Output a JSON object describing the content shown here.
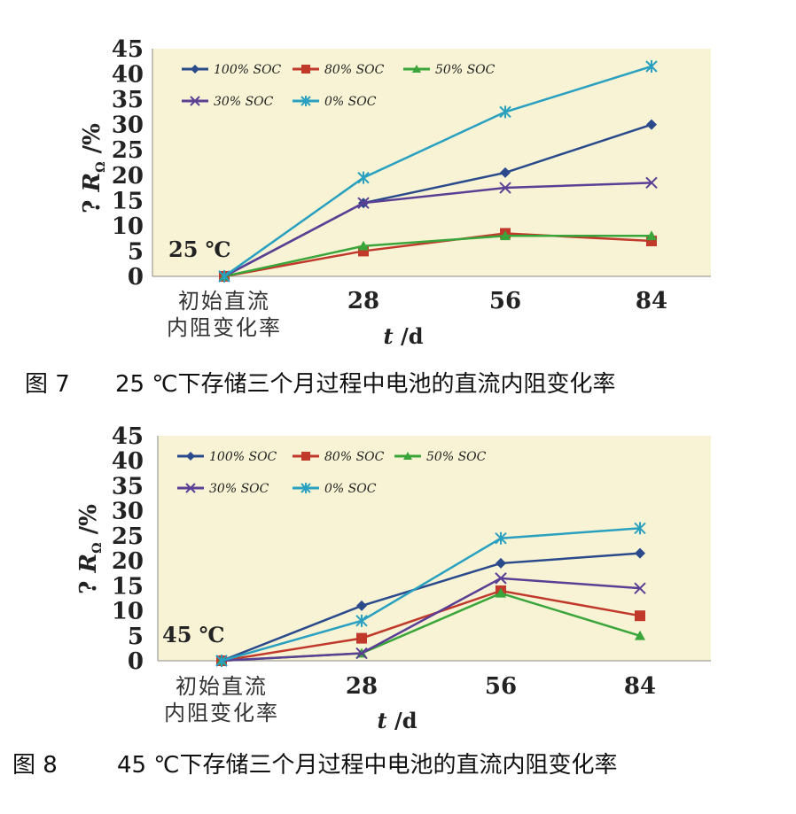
{
  "chart_data": [
    {
      "type": "line",
      "condition_label": "25 ℃",
      "caption_number": "图 7",
      "caption_text": "25 ℃下存储三个月过程中电池的直流内阻变化率",
      "ylabel_parts": [
        "?",
        "R",
        "/%"
      ],
      "ylabel_sub": "Ω",
      "xlabel_parts": [
        "t",
        "/d"
      ],
      "categories": [
        "初始直流内阻变化率",
        "28",
        "56",
        "84"
      ],
      "category_lines": [
        [
          "初始直流",
          "内阻变化率"
        ],
        [
          "28"
        ],
        [
          "56"
        ],
        [
          "84"
        ]
      ],
      "ylim": [
        0,
        45
      ],
      "yticks": [
        "0",
        "5",
        "10",
        "15",
        "20",
        "25",
        "30",
        "35",
        "40",
        "45"
      ],
      "series": [
        {
          "name": "100% SOC",
          "color": "#2a4a8c",
          "marker": "diamond",
          "values": [
            0,
            14.5,
            20.5,
            30
          ]
        },
        {
          "name": "80% SOC",
          "color": "#c0392b",
          "marker": "square",
          "values": [
            0,
            5,
            8.5,
            7
          ]
        },
        {
          "name": "50% SOC",
          "color": "#3aa53a",
          "marker": "triangle",
          "values": [
            0,
            6,
            8,
            8
          ]
        },
        {
          "name": "30% SOC",
          "color": "#5b3f95",
          "marker": "x",
          "values": [
            0,
            14.5,
            17.5,
            18.5
          ]
        },
        {
          "name": "0% SOC",
          "color": "#2aa0c0",
          "marker": "star",
          "values": [
            0,
            19.5,
            32.5,
            41.5
          ]
        }
      ]
    },
    {
      "type": "line",
      "condition_label": "45 ℃",
      "caption_number": "图 8",
      "caption_text": "45 ℃下存储三个月过程中电池的直流内阻变化率",
      "ylabel_parts": [
        "?",
        "R",
        "/%"
      ],
      "ylabel_sub": "Ω",
      "xlabel_parts": [
        "t",
        "/d"
      ],
      "categories": [
        "初始直流内阻变化率",
        "28",
        "56",
        "84"
      ],
      "category_lines": [
        [
          "初始直流",
          "内阻变化率"
        ],
        [
          "28"
        ],
        [
          "56"
        ],
        [
          "84"
        ]
      ],
      "ylim": [
        0,
        45
      ],
      "yticks": [
        "0",
        "5",
        "10",
        "15",
        "20",
        "25",
        "30",
        "35",
        "40",
        "45"
      ],
      "series": [
        {
          "name": "100% SOC",
          "color": "#2a4a8c",
          "marker": "diamond",
          "values": [
            0,
            11,
            19.5,
            21.5
          ]
        },
        {
          "name": "80% SOC",
          "color": "#c0392b",
          "marker": "square",
          "values": [
            0,
            4.5,
            14,
            9
          ]
        },
        {
          "name": "50% SOC",
          "color": "#3aa53a",
          "marker": "triangle",
          "values": [
            0,
            1.5,
            13.5,
            5
          ]
        },
        {
          "name": "30% SOC",
          "color": "#5b3f95",
          "marker": "x",
          "values": [
            0,
            1.5,
            16.5,
            14.5
          ]
        },
        {
          "name": "0% SOC",
          "color": "#2aa0c0",
          "marker": "star",
          "values": [
            0,
            8,
            24.5,
            26.5
          ]
        }
      ]
    }
  ]
}
